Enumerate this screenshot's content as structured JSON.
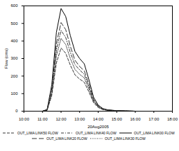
{
  "chart_data": {
    "type": "line",
    "x_label": "20Aug2005",
    "y_label": "Flow (cms)",
    "x": [
      10,
      10.5,
      11,
      11.25,
      11.5,
      11.75,
      12,
      12.25,
      12.5,
      12.75,
      13,
      13.25,
      13.5,
      13.75,
      14,
      14.25,
      14.5,
      15,
      16,
      18
    ],
    "series": [
      {
        "name": "OUT_LIMA LINK50 FLOW",
        "color": "#333333",
        "line_style": "dashed",
        "values": [
          0,
          0,
          0,
          5,
          90,
          275,
          360,
          330,
          262,
          207,
          183,
          165,
          110,
          49,
          21,
          9,
          5,
          2,
          0,
          0
        ]
      },
      {
        "name": "OUT_LIMA LINK40 FLOW",
        "color": "#333333",
        "line_style": "dashdot",
        "values": [
          0,
          0,
          0,
          7,
          115,
          350,
          460,
          420,
          335,
          265,
          235,
          210,
          140,
          62,
          27,
          12,
          6,
          2,
          0,
          0
        ]
      },
      {
        "name": "OUT_LIMA LINK00 FLOW",
        "color": "#000000",
        "line_style": "solid",
        "values": [
          0,
          0,
          0,
          10,
          150,
          450,
          585,
          540,
          430,
          340,
          300,
          270,
          180,
          80,
          35,
          15,
          8,
          3,
          0,
          0
        ]
      },
      {
        "name": "OUT_LIMA LINK20 FLOW",
        "color": "#333333",
        "line_style": "longdash",
        "values": [
          0,
          0,
          0,
          8,
          125,
          385,
          505,
          465,
          370,
          290,
          255,
          230,
          155,
          68,
          30,
          13,
          7,
          2,
          0,
          0
        ]
      },
      {
        "name": "OUT_LIMA LINK30 FLOW",
        "color": "#333333",
        "line_style": "dotted",
        "values": [
          0,
          0,
          0,
          6,
          100,
          315,
          415,
          380,
          300,
          238,
          210,
          190,
          126,
          56,
          24,
          10,
          5,
          2,
          0,
          0
        ]
      }
    ],
    "xlim": [
      10,
      18
    ],
    "xticks": [
      {
        "value": 10,
        "label": "10:00"
      },
      {
        "value": 11,
        "label": "11:00"
      },
      {
        "value": 12,
        "label": "12:00"
      },
      {
        "value": 13,
        "label": "13:00"
      },
      {
        "value": 14,
        "label": "14:00"
      },
      {
        "value": 15,
        "label": "15:00"
      },
      {
        "value": 16,
        "label": "16:00"
      },
      {
        "value": 17,
        "label": "17:00"
      },
      {
        "value": 18,
        "label": "18:00"
      }
    ],
    "ylim": [
      0,
      600
    ],
    "yticks": [
      0,
      100,
      200,
      300,
      400,
      500,
      600
    ],
    "grid": false,
    "legend": "bottom"
  }
}
